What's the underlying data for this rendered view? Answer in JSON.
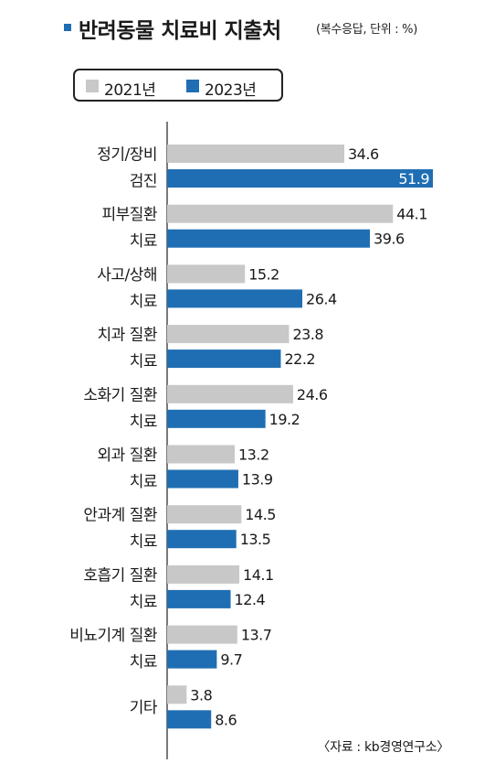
{
  "header": {
    "title": "반려동물 치료비 지출처",
    "subtitle": "(복수응답, 단위 : %)"
  },
  "legend": {
    "items": [
      {
        "label": "2021년",
        "color": "#c8c8c8"
      },
      {
        "label": "2023년",
        "color": "#1f6eb3"
      }
    ]
  },
  "chart_data": {
    "type": "bar",
    "orientation": "horizontal",
    "categories": [
      [
        "정기/장비",
        "검진"
      ],
      [
        "피부질환",
        "치료"
      ],
      [
        "사고/상해",
        "치료"
      ],
      [
        "치과 질환",
        "치료"
      ],
      [
        "소화기 질환",
        "치료"
      ],
      [
        "외과 질환",
        "치료"
      ],
      [
        "안과계 질환",
        "치료"
      ],
      [
        "호흡기 질환",
        "치료"
      ],
      [
        "비뇨기계 질환",
        "치료"
      ],
      [
        "기타"
      ]
    ],
    "series": [
      {
        "name": "2021년",
        "color": "#c8c8c8",
        "values": [
          34.6,
          44.1,
          15.2,
          23.8,
          24.6,
          13.2,
          14.5,
          14.1,
          13.7,
          3.8
        ]
      },
      {
        "name": "2023년",
        "color": "#1f6eb3",
        "values": [
          51.9,
          39.6,
          26.4,
          22.2,
          19.2,
          13.9,
          13.5,
          12.4,
          9.7,
          8.6
        ]
      }
    ],
    "value_labels": {
      "2021년": [
        "34.6",
        "44.1",
        "15.2",
        "23.8",
        "24.6",
        "13.2",
        "14.5",
        "14.1",
        "13.7",
        "3.8"
      ],
      "2023년": [
        "51.9",
        "39.6",
        "26.4",
        "22.2",
        "19.2",
        "13.9",
        "13.5",
        "12.4",
        "9.7",
        "8.6"
      ]
    },
    "xlim": [
      0,
      60
    ],
    "grid": false
  },
  "footer": {
    "source": "〈자료 : kb경영연구소〉"
  }
}
